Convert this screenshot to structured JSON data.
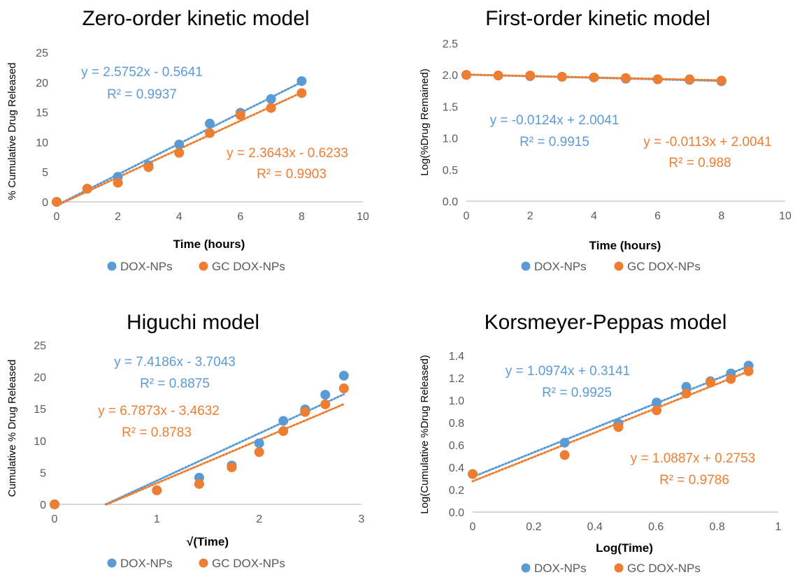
{
  "colors": {
    "dox": "#5b9bd5",
    "gc": "#ed7d31",
    "axis": "#bfbfbf",
    "text": "#000000",
    "tick": "#595959"
  },
  "chart_data": [
    {
      "type": "scatter",
      "title": "Zero-order kinetic model",
      "xlabel": "Time (hours)",
      "ylabel": "% Cumulative Drug Released",
      "xlim": [
        0,
        10
      ],
      "ylim": [
        0,
        25
      ],
      "x_ticks": [
        0,
        2,
        4,
        6,
        8,
        10
      ],
      "x_tick_labels": [
        "0",
        "2",
        "4",
        "6",
        "8",
        "10"
      ],
      "y_ticks": [
        0,
        5,
        10,
        15,
        20,
        25
      ],
      "y_tick_labels": [
        "0",
        "5",
        "10",
        "15",
        "20",
        "25"
      ],
      "legend_position": "bottom",
      "series": [
        {
          "name": "DOX-NPs",
          "color_key": "dox",
          "x": [
            0,
            1,
            2,
            3,
            4,
            5,
            6,
            7,
            8
          ],
          "y": [
            0,
            2.2,
            4.2,
            6.1,
            9.6,
            13.1,
            14.9,
            17.2,
            20.2
          ],
          "trendline": {
            "slope": 2.5752,
            "intercept": -0.5641,
            "x_range": [
              0,
              8
            ]
          },
          "equation": "y = 2.5752x - 0.5641",
          "r2": "R² = 0.9937"
        },
        {
          "name": "GC DOX-NPs",
          "color_key": "gc",
          "x": [
            0,
            1,
            2,
            3,
            4,
            5,
            6,
            7,
            8
          ],
          "y": [
            0,
            2.2,
            3.2,
            5.8,
            8.2,
            11.5,
            14.5,
            15.7,
            18.2
          ],
          "trendline": {
            "slope": 2.3643,
            "intercept": -0.6233,
            "x_range": [
              0,
              8
            ]
          },
          "equation": "y = 2.3643x - 0.6233",
          "r2": "R² = 0.9903"
        }
      ]
    },
    {
      "type": "scatter",
      "title": "First-order kinetic model",
      "xlabel": "Time (hours)",
      "ylabel": "Log(%Drug Remained)",
      "xlim": [
        0,
        10
      ],
      "ylim": [
        0,
        2.5
      ],
      "x_ticks": [
        0,
        2,
        4,
        6,
        8,
        10
      ],
      "x_tick_labels": [
        "0",
        "2",
        "4",
        "6",
        "8",
        "10"
      ],
      "y_ticks": [
        0,
        0.5,
        1,
        1.5,
        2,
        2.5
      ],
      "y_tick_labels": [
        "0.0",
        "0.5",
        "1.0",
        "1.5",
        "2.0",
        "2.5"
      ],
      "legend_position": "bottom",
      "series": [
        {
          "name": "DOX-NPs",
          "color_key": "dox",
          "x": [
            0,
            1,
            2,
            3,
            4,
            5,
            6,
            7,
            8
          ],
          "y": [
            2.0,
            1.99,
            1.98,
            1.97,
            1.96,
            1.94,
            1.93,
            1.92,
            1.9
          ],
          "trendline": {
            "slope": -0.0124,
            "intercept": 2.0041,
            "x_range": [
              0,
              8
            ]
          },
          "equation": "y = -0.0124x + 2.0041",
          "r2": "R² = 0.9915"
        },
        {
          "name": "GC DOX-NPs",
          "color_key": "gc",
          "x": [
            0,
            1,
            2,
            3,
            4,
            5,
            6,
            7,
            8
          ],
          "y": [
            2.0,
            1.99,
            1.99,
            1.97,
            1.96,
            1.95,
            1.93,
            1.93,
            1.91
          ],
          "trendline": {
            "slope": -0.0113,
            "intercept": 2.0041,
            "x_range": [
              0,
              8
            ]
          },
          "equation": "y = -0.0113x + 2.0041",
          "r2": "R² = 0.988"
        }
      ]
    },
    {
      "type": "scatter",
      "title": "Higuchi model",
      "xlabel": "√(Time)",
      "ylabel": "Cumulative % Drug Released",
      "xlim": [
        0,
        3
      ],
      "ylim": [
        0,
        25
      ],
      "x_ticks": [
        0,
        1,
        2,
        3
      ],
      "x_tick_labels": [
        "0",
        "1",
        "2",
        "3"
      ],
      "y_ticks": [
        0,
        5,
        10,
        15,
        20,
        25
      ],
      "y_tick_labels": [
        "0",
        "5",
        "10",
        "15",
        "20",
        "25"
      ],
      "legend_position": "bottom",
      "series": [
        {
          "name": "DOX-NPs",
          "color_key": "dox",
          "x": [
            0,
            1,
            1.414,
            1.732,
            2,
            2.236,
            2.449,
            2.646,
            2.828
          ],
          "y": [
            0,
            2.2,
            4.2,
            6.1,
            9.6,
            13.1,
            14.9,
            17.2,
            20.2
          ],
          "trendline": {
            "slope": 7.4186,
            "intercept": -3.7043,
            "x_range": [
              0.5,
              2.828
            ]
          },
          "equation": "y = 7.4186x - 3.7043",
          "r2": "R² = 0.8875"
        },
        {
          "name": "GC DOX-NPs",
          "color_key": "gc",
          "x": [
            0,
            1,
            1.414,
            1.732,
            2,
            2.236,
            2.449,
            2.646,
            2.828
          ],
          "y": [
            0,
            2.2,
            3.2,
            5.8,
            8.2,
            11.5,
            14.5,
            15.7,
            18.2
          ],
          "trendline": {
            "slope": 6.7873,
            "intercept": -3.4632,
            "x_range": [
              0.51,
              2.828
            ]
          },
          "equation": "y = 6.7873x - 3.4632",
          "r2": "R² = 0.8783"
        }
      ]
    },
    {
      "type": "scatter",
      "title": "Korsmeyer-Peppas model",
      "xlabel": "Log(Time)",
      "ylabel": "Log(Cumulative %Drug Released)",
      "xlim": [
        0,
        1
      ],
      "ylim": [
        0,
        1.4
      ],
      "x_ticks": [
        0,
        0.2,
        0.4,
        0.6,
        0.8,
        1
      ],
      "x_tick_labels": [
        "0",
        "0.2",
        "0.4",
        "0.6",
        "0.8",
        "1"
      ],
      "y_ticks": [
        0,
        0.2,
        0.4,
        0.6,
        0.8,
        1.0,
        1.2,
        1.4
      ],
      "y_tick_labels": [
        "0.0",
        "0.2",
        "0.4",
        "0.6",
        "0.8",
        "1.0",
        "1.2",
        "1.4"
      ],
      "legend_position": "bottom",
      "series": [
        {
          "name": "DOX-NPs",
          "color_key": "dox",
          "x": [
            0,
            0.301,
            0.477,
            0.602,
            0.699,
            0.778,
            0.845,
            0.903
          ],
          "y": [
            0.34,
            0.62,
            0.79,
            0.98,
            1.12,
            1.17,
            1.24,
            1.31
          ],
          "trendline": {
            "slope": 1.0974,
            "intercept": 0.3141,
            "x_range": [
              0,
              0.903
            ]
          },
          "equation": "y = 1.0974x + 0.3141",
          "r2": "R² = 0.9925"
        },
        {
          "name": "GC DOX-NPs",
          "color_key": "gc",
          "x": [
            0,
            0.301,
            0.477,
            0.602,
            0.699,
            0.778,
            0.845,
            0.903
          ],
          "y": [
            0.34,
            0.51,
            0.76,
            0.91,
            1.06,
            1.16,
            1.19,
            1.26
          ],
          "trendline": {
            "slope": 1.0887,
            "intercept": 0.2753,
            "x_range": [
              0,
              0.903
            ]
          },
          "equation": "y = 1.0887x + 0.2753",
          "r2": "R² = 0.9786"
        }
      ]
    }
  ]
}
